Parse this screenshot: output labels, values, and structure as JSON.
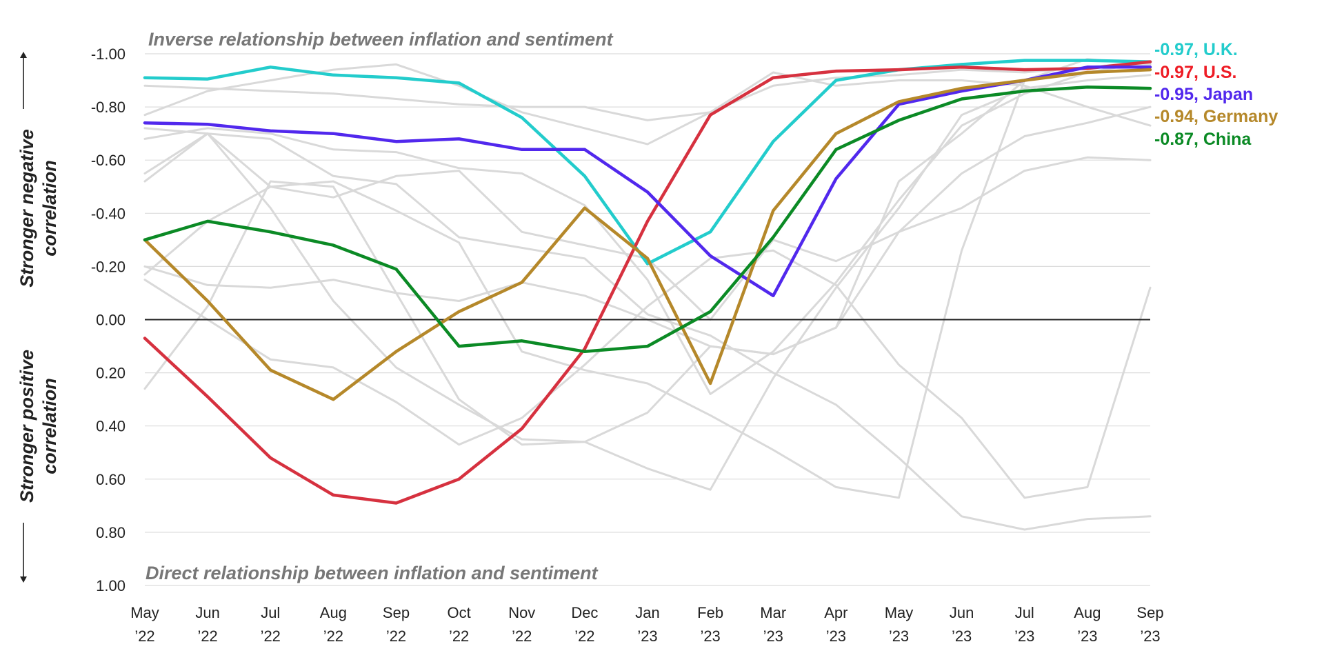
{
  "chart_data": {
    "type": "line",
    "x": [
      "May '22",
      "Jun '22",
      "Jul '22",
      "Aug '22",
      "Sep '22",
      "Oct '22",
      "Nov '22",
      "Dec '22",
      "Jan '23",
      "Feb '23",
      "Mar '23",
      "Apr '23",
      "May '23",
      "Jun '23",
      "Jul '23",
      "Aug '23",
      "Sep '23"
    ],
    "x_tick_labels": [
      [
        "May",
        "’22"
      ],
      [
        "Jun",
        "’22"
      ],
      [
        "Jul",
        "’22"
      ],
      [
        "Aug",
        "’22"
      ],
      [
        "Sep",
        "’22"
      ],
      [
        "Oct",
        "’22"
      ],
      [
        "Nov",
        "’22"
      ],
      [
        "Dec",
        "’22"
      ],
      [
        "Jan",
        "’23"
      ],
      [
        "Feb",
        "’23"
      ],
      [
        "Mar",
        "’23"
      ],
      [
        "Apr",
        "’23"
      ],
      [
        "May",
        "’23"
      ],
      [
        "Jun",
        "’23"
      ],
      [
        "Jul",
        "’23"
      ],
      [
        "Aug",
        "’23"
      ],
      [
        "Sep",
        "’23"
      ]
    ],
    "y_ticks": [
      -1.0,
      -0.8,
      -0.6,
      -0.4,
      -0.2,
      0.0,
      0.2,
      0.4,
      0.6,
      0.8,
      1.0
    ],
    "y_tick_labels": [
      "-1.00",
      "-0.80",
      "-0.60",
      "-0.40",
      "-0.20",
      "0.00",
      "0.20",
      "0.40",
      "0.60",
      "0.80",
      "1.00"
    ],
    "ylim": [
      -1.0,
      1.0
    ],
    "y_inverted": true,
    "grid": true,
    "annotations": {
      "top": "Inverse relationship between inflation and sentiment",
      "bottom": "Direct relationship between inflation and sentiment"
    },
    "ylabel_upper": [
      "Stronger negative",
      "correlation"
    ],
    "ylabel_lower": [
      "Stronger positive",
      "correlation"
    ],
    "zero_line_color": "#222222",
    "background_series_color": "#d9d9d9",
    "background_series": [
      [
        -0.88,
        -0.87,
        -0.86,
        -0.85,
        -0.83,
        -0.81,
        -0.8,
        -0.8,
        -0.75,
        -0.78,
        -0.93,
        -0.88,
        -0.9,
        -0.9,
        -0.88,
        -0.8,
        -0.73
      ],
      [
        -0.77,
        -0.86,
        -0.9,
        -0.94,
        -0.96,
        -0.88,
        -0.78,
        -0.72,
        -0.66,
        -0.78,
        -0.88,
        -0.91,
        -0.92,
        -0.94,
        -0.93,
        -0.95,
        -0.97
      ],
      [
        -0.68,
        -0.72,
        -0.7,
        -0.64,
        -0.63,
        -0.57,
        -0.55,
        -0.43,
        -0.15,
        0.28,
        0.12,
        -0.14,
        -0.45,
        -0.73,
        -0.85,
        -0.93,
        -0.97
      ],
      [
        -0.52,
        -0.7,
        -0.42,
        -0.07,
        0.18,
        0.32,
        0.45,
        0.46,
        0.56,
        0.64,
        0.22,
        -0.12,
        -0.42,
        -0.77,
        -0.87,
        -0.9,
        -0.92
      ],
      [
        0.26,
        -0.05,
        -0.52,
        -0.5,
        -0.1,
        0.3,
        0.47,
        0.46,
        0.35,
        0.1,
        0.13,
        0.03,
        -0.33,
        -0.55,
        -0.69,
        -0.74,
        -0.8
      ],
      [
        -0.55,
        -0.7,
        -0.5,
        -0.46,
        -0.54,
        -0.56,
        -0.33,
        -0.28,
        -0.23,
        0.0,
        -0.3,
        -0.22,
        -0.33,
        -0.42,
        -0.56,
        -0.61,
        -0.6
      ],
      [
        -0.15,
        0.0,
        0.15,
        0.18,
        0.31,
        0.47,
        0.37,
        0.17,
        -0.05,
        -0.23,
        -0.26,
        -0.13,
        0.17,
        0.37,
        0.67,
        0.63,
        -0.12
      ],
      [
        -0.2,
        -0.13,
        -0.12,
        -0.15,
        -0.1,
        -0.07,
        -0.14,
        -0.09,
        0.0,
        0.1,
        0.13,
        0.03,
        -0.52,
        -0.7,
        -0.9,
        -0.98,
        -0.96
      ],
      [
        -0.72,
        -0.7,
        -0.68,
        -0.54,
        -0.51,
        -0.31,
        -0.27,
        -0.23,
        -0.02,
        0.06,
        0.2,
        0.32,
        0.52,
        0.74,
        0.79,
        0.75,
        0.74
      ],
      [
        -0.17,
        -0.37,
        -0.5,
        -0.52,
        -0.41,
        -0.29,
        0.12,
        0.19,
        0.24,
        0.36,
        0.49,
        0.63,
        0.67,
        -0.26,
        -0.9,
        -0.95,
        -0.96
      ]
    ],
    "series": [
      {
        "name": "U.K.",
        "label": "-0.97, U.K.",
        "color": "#23cccc",
        "values": [
          -0.91,
          -0.905,
          -0.95,
          -0.92,
          -0.91,
          -0.89,
          -0.76,
          -0.54,
          -0.21,
          -0.33,
          -0.67,
          -0.9,
          -0.94,
          -0.96,
          -0.975,
          -0.975,
          -0.97
        ]
      },
      {
        "name": "U.S.",
        "label": "-0.97, U.S.",
        "color": "#d6313f",
        "label_color": "#ee1c25",
        "values": [
          0.07,
          0.29,
          0.52,
          0.66,
          0.69,
          0.6,
          0.41,
          0.11,
          -0.37,
          -0.77,
          -0.91,
          -0.935,
          -0.94,
          -0.95,
          -0.94,
          -0.945,
          -0.97
        ]
      },
      {
        "name": "Japan",
        "label": "-0.95, Japan",
        "color": "#5128ed",
        "values": [
          -0.74,
          -0.735,
          -0.71,
          -0.7,
          -0.67,
          -0.68,
          -0.64,
          -0.64,
          -0.48,
          -0.24,
          -0.09,
          -0.53,
          -0.81,
          -0.86,
          -0.9,
          -0.95,
          -0.95
        ]
      },
      {
        "name": "Germany",
        "label": "-0.94, Germany",
        "color": "#b5882a",
        "values": [
          -0.3,
          -0.07,
          0.19,
          0.3,
          0.12,
          -0.03,
          -0.14,
          -0.42,
          -0.23,
          0.24,
          -0.41,
          -0.7,
          -0.82,
          -0.87,
          -0.9,
          -0.93,
          -0.94
        ]
      },
      {
        "name": "China",
        "label": "-0.87, China",
        "color": "#0b8a25",
        "values": [
          -0.3,
          -0.37,
          -0.33,
          -0.28,
          -0.19,
          0.1,
          0.08,
          0.12,
          0.1,
          -0.03,
          -0.31,
          -0.64,
          -0.75,
          -0.83,
          -0.86,
          -0.875,
          -0.87
        ]
      }
    ]
  }
}
